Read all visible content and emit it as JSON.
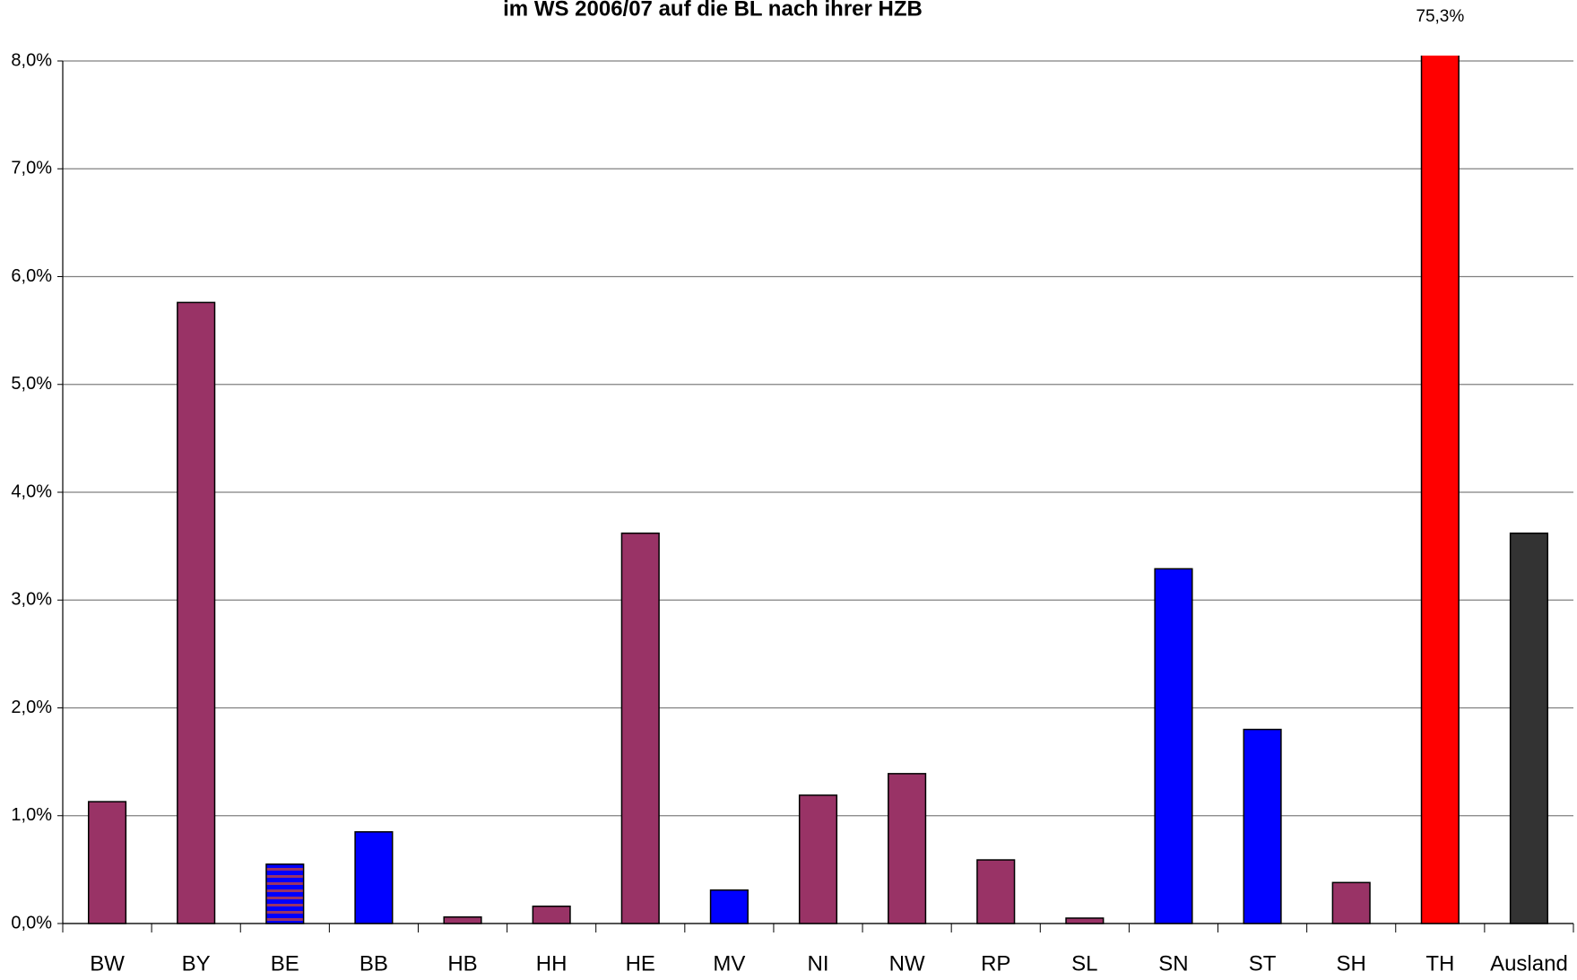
{
  "chart_data": {
    "type": "bar",
    "title": "im WS 2006/07 auf die BL nach ihrer HZB",
    "categories": [
      "BW",
      "BY",
      "BE",
      "BB",
      "HB",
      "HH",
      "HE",
      "MV",
      "NI",
      "NW",
      "RP",
      "SL",
      "SN",
      "ST",
      "SH",
      "TH",
      "Ausland"
    ],
    "values": [
      1.13,
      5.76,
      0.55,
      0.85,
      0.06,
      0.16,
      3.62,
      0.31,
      1.19,
      1.39,
      0.59,
      0.05,
      3.29,
      1.8,
      0.38,
      75.3,
      3.62
    ],
    "value_labels": [
      null,
      null,
      null,
      null,
      null,
      null,
      null,
      null,
      null,
      null,
      null,
      null,
      null,
      null,
      null,
      "75,3%",
      null
    ],
    "colors": [
      "#993366",
      "#993366",
      "#0000ff",
      "#0000ff",
      "#993366",
      "#993366",
      "#993366",
      "#0000ff",
      "#993366",
      "#993366",
      "#993366",
      "#993366",
      "#0000ff",
      "#0000ff",
      "#993366",
      "#ff0000",
      "#333333"
    ],
    "bar_patterns": [
      null,
      null,
      "horizontal-stripes",
      null,
      null,
      null,
      null,
      null,
      null,
      null,
      null,
      null,
      null,
      null,
      null,
      null,
      null
    ],
    "stripe_color": "#993366",
    "ylim": [
      0,
      8
    ],
    "yticks": [
      {
        "value": 0,
        "label": "0,0%"
      },
      {
        "value": 1,
        "label": "1,0%"
      },
      {
        "value": 2,
        "label": "2,0%"
      },
      {
        "value": 3,
        "label": "3,0%"
      },
      {
        "value": 4,
        "label": "4,0%"
      },
      {
        "value": 5,
        "label": "5,0%"
      },
      {
        "value": 6,
        "label": "6,0%"
      },
      {
        "value": 7,
        "label": "7,0%"
      },
      {
        "value": 8,
        "label": "8,0%"
      }
    ],
    "grid": true
  }
}
